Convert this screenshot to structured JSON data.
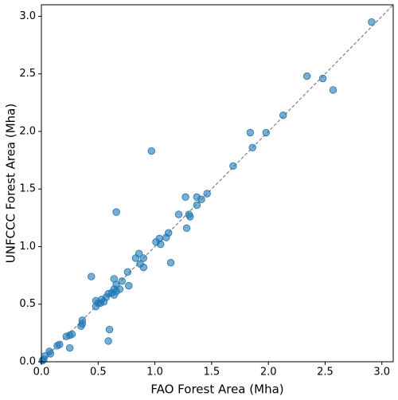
{
  "chart_data": {
    "type": "scatter",
    "x_label": "FAO Forest Area (Mha)",
    "y_label": "UNFCCC Forest Area (Mha)",
    "color": "#1f77b4",
    "xlim": [
      0,
      3.1
    ],
    "ylim": [
      0,
      3.1
    ],
    "xticks": [
      {
        "value": 0,
        "label": "0.0"
      },
      0.5,
      {
        "value": 1,
        "label": "1.0"
      },
      1.5,
      {
        "value": 2,
        "label": "2.0"
      },
      2.5,
      {
        "value": 3,
        "label": "3.0"
      }
    ],
    "yticks": [
      {
        "value": 0,
        "label": "0.0"
      },
      0.5,
      {
        "value": 1,
        "label": "1.0"
      },
      1.5,
      {
        "value": 2,
        "label": "2.0"
      },
      2.5,
      {
        "value": 3,
        "label": "3.0"
      }
    ],
    "x": [
      2.91,
      2.34,
      2.48,
      2.57,
      2.13,
      1.84,
      1.86,
      1.98,
      1.69,
      0.97,
      1.46,
      1.37,
      1.27,
      1.41,
      1.37,
      1.3,
      1.21,
      1.31,
      1.28,
      0.66,
      1.12,
      1.1,
      1.04,
      1.01,
      1.05,
      0.86,
      0.9,
      0.83,
      1.14,
      0.87,
      0.9,
      0.76,
      0.44,
      0.64,
      0.71,
      0.66,
      0.77,
      0.69,
      0.64,
      0.66,
      0.62,
      0.59,
      0.64,
      0.57,
      0.53,
      0.48,
      0.55,
      0.5,
      0.48,
      0.52,
      0.36,
      0.36,
      0.35,
      0.6,
      0.27,
      0.22,
      0.25,
      0.59,
      0.16,
      0.14,
      0.25,
      0.07,
      0.08,
      0.03,
      0.02,
      0.01
    ],
    "values": [
      2.95,
      2.48,
      2.46,
      2.36,
      2.14,
      1.99,
      1.86,
      1.99,
      1.7,
      1.83,
      1.46,
      1.43,
      1.43,
      1.41,
      1.36,
      1.28,
      1.28,
      1.26,
      1.16,
      1.3,
      1.12,
      1.08,
      1.07,
      1.04,
      1.02,
      0.94,
      0.9,
      0.9,
      0.86,
      0.85,
      0.82,
      0.78,
      0.74,
      0.72,
      0.7,
      0.67,
      0.66,
      0.63,
      0.63,
      0.61,
      0.6,
      0.59,
      0.58,
      0.56,
      0.54,
      0.53,
      0.52,
      0.51,
      0.48,
      0.51,
      0.36,
      0.33,
      0.31,
      0.28,
      0.24,
      0.22,
      0.23,
      0.18,
      0.15,
      0.14,
      0.12,
      0.09,
      0.07,
      0.05,
      0.02,
      0.01
    ]
  }
}
